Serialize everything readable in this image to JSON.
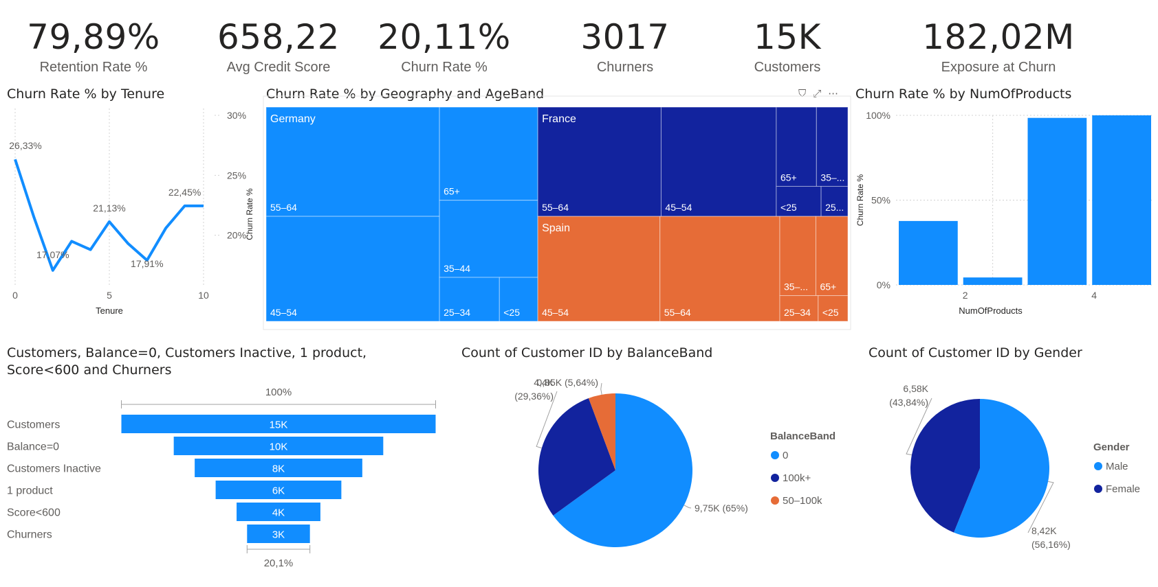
{
  "kpis": [
    {
      "value": "79,89%",
      "label": "Retention Rate %"
    },
    {
      "value": "658,22",
      "label": "Avg Credit Score"
    },
    {
      "value": "20,11%",
      "label": "Churn Rate %"
    },
    {
      "value": "3017",
      "label": "Churners"
    },
    {
      "value": "15K",
      "label": "Customers"
    },
    {
      "value": "182,02M",
      "label": "Exposure at Churn"
    }
  ],
  "colors": {
    "blue": "#118dff",
    "navy": "#12239e",
    "orange": "#e66c37",
    "grid": "#d0d0d0",
    "text": "#252423",
    "muted": "#605e5c"
  },
  "visual_header_icons": [
    "filter-icon",
    "focus-mode-icon",
    "more-options-icon"
  ],
  "chart_data": [
    {
      "type": "line",
      "title": "Churn Rate % by Tenure",
      "xlabel": "Tenure",
      "ylabel": "",
      "x": [
        0,
        1,
        2,
        3,
        4,
        5,
        6,
        7,
        8,
        9,
        10
      ],
      "values": [
        26.33,
        21.5,
        17.07,
        19.5,
        18.8,
        21.13,
        19.3,
        17.91,
        20.6,
        22.45,
        22.45
      ],
      "data_labels": [
        {
          "x": 0,
          "text": "26,33%"
        },
        {
          "x": 2,
          "text": "17,07%"
        },
        {
          "x": 5,
          "text": "21,13%"
        },
        {
          "x": 7,
          "text": "17,91%"
        },
        {
          "x": 9,
          "text": "22,45%"
        }
      ],
      "x_ticks": [
        "0",
        "5",
        "10"
      ],
      "y_ticks": [
        "20%",
        "25%",
        "30%"
      ],
      "xlim": [
        0,
        10
      ],
      "ylim": [
        15,
        30
      ],
      "grid": "vertical dotted",
      "y_axis_side": "right"
    },
    {
      "type": "treemap",
      "title": "Churn Rate % by Geography and AgeBand",
      "ylabel": "Churn Rate %",
      "groups": [
        {
          "name": "Germany",
          "color": "#118dff",
          "items": [
            "55–64",
            "45–54",
            "65+",
            "35–44",
            "25–34",
            "<25"
          ]
        },
        {
          "name": "France",
          "color": "#12239e",
          "items": [
            "55–64",
            "45–54",
            "65+",
            "35–...",
            "<25",
            "25..."
          ]
        },
        {
          "name": "Spain",
          "color": "#e66c37",
          "items": [
            "45–54",
            "55–64",
            "35–...",
            "65+",
            "25–34",
            "<25"
          ]
        }
      ]
    },
    {
      "type": "bar",
      "title": "Churn Rate % by NumOfProducts",
      "xlabel": "NumOfProducts",
      "ylabel": "Churn Rate %",
      "categories": [
        "1",
        "2",
        "3",
        "4"
      ],
      "values": [
        37.7,
        4.4,
        98.5,
        100
      ],
      "x_ticks": [
        "2",
        "4"
      ],
      "y_ticks": [
        "0%",
        "50%",
        "100%"
      ],
      "ylim": [
        0,
        100
      ],
      "grid": "dotted"
    },
    {
      "type": "funnel",
      "title": "Customers, Balance=0, Customers Inactive, 1 product, Score<600 and Churners",
      "categories": [
        "Customers",
        "Balance=0",
        "Customers Inactive",
        "1 product",
        "Score<600",
        "Churners"
      ],
      "values": [
        15000,
        10000,
        8000,
        6000,
        4000,
        3000
      ],
      "value_labels": [
        "15K",
        "10K",
        "8K",
        "6K",
        "4K",
        "3K"
      ],
      "top_label": "100%",
      "bottom_label": "20,1%"
    },
    {
      "type": "pie",
      "title": "Count of Customer ID by BalanceBand",
      "legend_title": "BalanceBand",
      "categories": [
        "0",
        "100k+",
        "50–100k"
      ],
      "values": [
        9.75,
        4.4,
        0.85
      ],
      "colors": [
        "#118dff",
        "#12239e",
        "#e66c37"
      ],
      "labels": [
        "9,75K (65%)",
        "4,4K (29,36%)",
        "0,85K (5,64%)"
      ],
      "legend": "right"
    },
    {
      "type": "pie",
      "title": "Count of Customer ID by Gender",
      "legend_title": "Gender",
      "categories": [
        "Male",
        "Female"
      ],
      "values": [
        8.42,
        6.58
      ],
      "colors": [
        "#118dff",
        "#12239e"
      ],
      "labels": [
        "8,42K (56,16%)",
        "6,58K (43,84%)"
      ],
      "legend": "right"
    }
  ]
}
